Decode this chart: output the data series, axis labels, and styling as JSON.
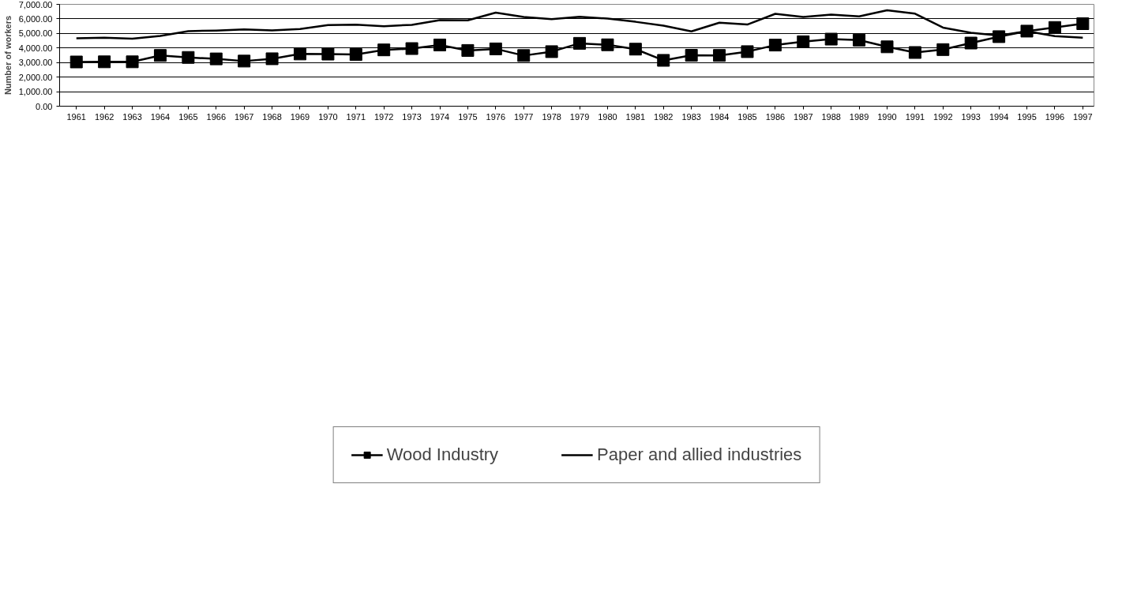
{
  "chart_data": {
    "type": "line",
    "ylabel": "Number of workers",
    "categories": [
      "1961",
      "1962",
      "1963",
      "1964",
      "1965",
      "1966",
      "1967",
      "1968",
      "1969",
      "1970",
      "1971",
      "1972",
      "1973",
      "1974",
      "1975",
      "1976",
      "1977",
      "1978",
      "1979",
      "1980",
      "1981",
      "1982",
      "1983",
      "1984",
      "1985",
      "1986",
      "1987",
      "1988",
      "1989",
      "1990",
      "1991",
      "1992",
      "1993",
      "1994",
      "1995",
      "1996",
      "1997"
    ],
    "series": [
      {
        "name": "Wood Industry",
        "color": "#000000",
        "marker": "square",
        "values": [
          3040,
          3050,
          3050,
          3490,
          3350,
          3250,
          3100,
          3260,
          3590,
          3580,
          3550,
          3870,
          3960,
          4210,
          3830,
          3940,
          3480,
          3750,
          4320,
          4220,
          3920,
          3150,
          3500,
          3490,
          3750,
          4200,
          4430,
          4610,
          4540,
          4080,
          3690,
          3890,
          4340,
          4780,
          5160,
          5410,
          5670
        ]
      },
      {
        "name": "Paper and allied industries",
        "color": "#000000",
        "marker": "none",
        "values": [
          4670,
          4710,
          4640,
          4830,
          5160,
          5200,
          5280,
          5210,
          5310,
          5570,
          5600,
          5500,
          5590,
          5920,
          5900,
          6430,
          6130,
          5980,
          6150,
          6020,
          5800,
          5530,
          5140,
          5740,
          5610,
          6350,
          6130,
          6290,
          6170,
          6590,
          6360,
          5400,
          5050,
          4860,
          5160,
          4820,
          4710
        ]
      }
    ],
    "ylim": [
      0,
      7000
    ],
    "yticks": [
      {
        "value": 0,
        "label": "0.00"
      },
      {
        "value": 1000,
        "label": "1,000.00"
      },
      {
        "value": 2000,
        "label": "2,000.00"
      },
      {
        "value": 3000,
        "label": "3,000.00"
      },
      {
        "value": 4000,
        "label": "4,000.00"
      },
      {
        "value": 5000,
        "label": "5,000.00"
      },
      {
        "value": 6000,
        "label": "6,000.00"
      },
      {
        "value": 7000,
        "label": "7,000.00"
      }
    ],
    "grid": "y",
    "legend": "bottom",
    "line_style": "solid"
  }
}
